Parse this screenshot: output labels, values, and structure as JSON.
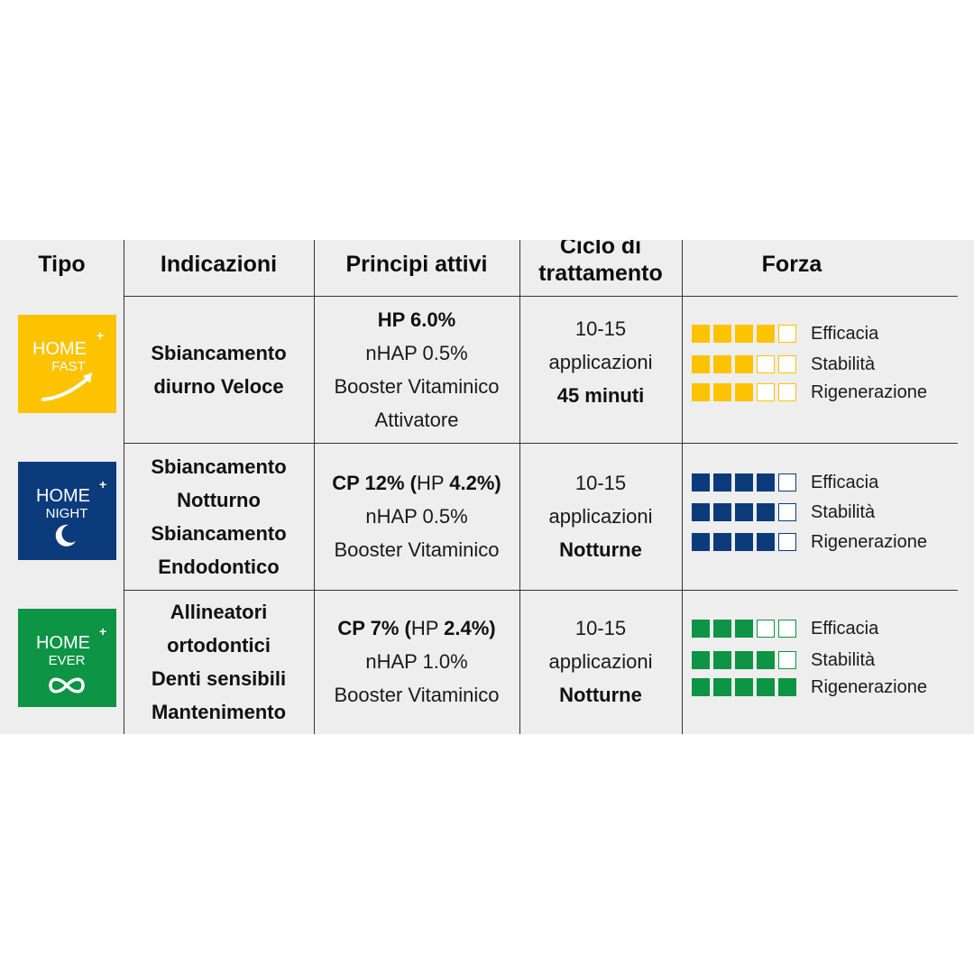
{
  "headers": {
    "tipo": "Tipo",
    "indicazioni": "Indicazioni",
    "principi": "Principi attivi",
    "ciclo_line1": "Ciclo di",
    "ciclo_line2": "trattamento",
    "forza": "Forza"
  },
  "rows": [
    {
      "logo": {
        "word": "HOME",
        "plus": "+",
        "sub": "FAST",
        "icon": "arrow-up-right-icon",
        "color": "#fdc300"
      },
      "indicazioni": [
        "Sbiancamento",
        "diurno Veloce"
      ],
      "principi": [
        {
          "bold": "HP 6.0%"
        },
        {
          "normal": "nHAP 0.5%"
        },
        {
          "normal": "Booster Vitaminico"
        },
        {
          "normal": "Attivatore"
        }
      ],
      "ciclo": [
        "10-15",
        "applicazioni",
        "45 minuti"
      ],
      "forza": [
        {
          "label": "Efficacia",
          "filled": 4,
          "total": 5
        },
        {
          "label": "Stabilità",
          "filled": 3,
          "total": 5
        },
        {
          "label": "Rigenerazione",
          "filled": 3,
          "total": 5
        }
      ]
    },
    {
      "logo": {
        "word": "HOME",
        "plus": "+",
        "sub": "NIGHT",
        "icon": "crescent-moon-icon",
        "color": "#0c3b7c"
      },
      "indicazioni": [
        "Sbiancamento",
        "Notturno",
        "Sbiancamento",
        "Endodontico"
      ],
      "principi": [
        {
          "p1": "CP 12% (",
          "p2": "HP ",
          "p3": "4.2%)"
        },
        {
          "normal": "nHAP 0.5%"
        },
        {
          "normal": "Booster Vitaminico"
        }
      ],
      "ciclo": [
        "10-15",
        "applicazioni",
        "Notturne"
      ],
      "forza": [
        {
          "label": "Efficacia",
          "filled": 4,
          "total": 5
        },
        {
          "label": "Stabilità",
          "filled": 4,
          "total": 5
        },
        {
          "label": "Rigenerazione",
          "filled": 4,
          "total": 5
        }
      ]
    },
    {
      "logo": {
        "word": "HOME",
        "plus": "+",
        "sub": "EVER",
        "icon": "infinity-icon",
        "color": "#0d9444"
      },
      "indicazioni": [
        "Allineatori",
        "ortodontici",
        "Denti sensibili",
        "Mantenimento"
      ],
      "principi": [
        {
          "p1": "CP 7% (",
          "p2": "HP ",
          "p3": "2.4%)"
        },
        {
          "normal": "nHAP 1.0%"
        },
        {
          "normal": "Booster Vitaminico"
        }
      ],
      "ciclo": [
        "10-15",
        "applicazioni",
        "Notturne"
      ],
      "forza": [
        {
          "label": "Efficacia",
          "filled": 3,
          "total": 5
        },
        {
          "label": "Stabilità",
          "filled": 4,
          "total": 5
        },
        {
          "label": "Rigenerazione",
          "filled": 5,
          "total": 5
        }
      ]
    }
  ]
}
